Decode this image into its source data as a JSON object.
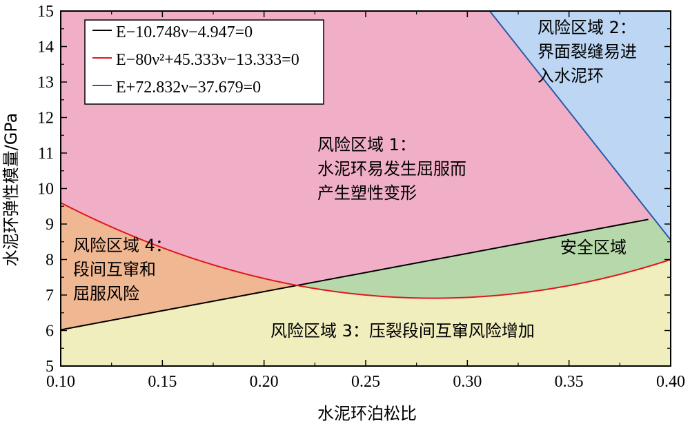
{
  "chart_data": {
    "type": "area",
    "xlabel": "水泥环泊松比",
    "ylabel": "水泥环弹性模量/GPa",
    "xlim": [
      0.1,
      0.4
    ],
    "ylim": [
      5,
      15
    ],
    "x_ticks": [
      "0.10",
      "0.15",
      "0.20",
      "0.25",
      "0.30",
      "0.35",
      "0.40"
    ],
    "y_ticks": [
      "5",
      "6",
      "7",
      "8",
      "9",
      "10",
      "11",
      "12",
      "13",
      "14",
      "15"
    ],
    "grid": false,
    "legend": {
      "placement": "top-left",
      "entries": [
        {
          "label": "E−10.748ν−4.947=0",
          "color": "#000000"
        },
        {
          "label": "E−80ν²+45.333ν−13.333=0",
          "color": "#e0161b"
        },
        {
          "label": "E+72.832ν−37.679=0",
          "color": "#2858a8"
        }
      ]
    },
    "series": [
      {
        "equation": "E−10.748ν−4.947=0",
        "color": "#000000",
        "x": [
          0.1,
          0.389
        ],
        "y": [
          6.02,
          9.13
        ]
      },
      {
        "equation": "E−80ν²+45.333ν−13.333=0",
        "color": "#e0161b",
        "x": [
          0.1,
          0.15,
          0.2,
          0.25,
          0.283,
          0.3,
          0.35,
          0.4
        ],
        "y": [
          9.6,
          8.33,
          7.47,
          7.0,
          6.91,
          6.93,
          7.27,
          8.0
        ]
      },
      {
        "equation": "E+72.832ν−37.679=0",
        "color": "#2858a8",
        "x": [
          0.311,
          0.4
        ],
        "y": [
          15.0,
          8.55
        ]
      }
    ],
    "regions": [
      {
        "lines": [
          "风险区域 1：",
          "水泥环易发生屈服而",
          "产生塑性变形"
        ],
        "color": "#f0afc6"
      },
      {
        "lines": [
          "风险区域 2：",
          "界面裂缝易进",
          "入水泥环"
        ],
        "color": "#bcd6f4"
      },
      {
        "lines": [
          "风险区域 3：压裂段间互窜风险增加"
        ],
        "color": "#f0eebd"
      },
      {
        "lines": [
          "风险区域 4：",
          "段间互窜和",
          "屈服风险"
        ],
        "color": "#f0b793"
      },
      {
        "lines": [
          "安全区域"
        ],
        "color": "#b6d8aa"
      }
    ]
  }
}
